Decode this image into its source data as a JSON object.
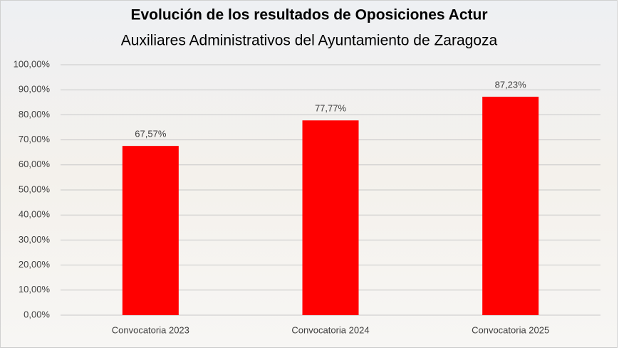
{
  "chart_data": {
    "type": "bar",
    "title": "Evolución de los resultados de Oposiciones Actur",
    "subtitle": "Auxiliares Administrativos del Ayuntamiento de Zaragoza",
    "categories": [
      "Convocatoria 2023",
      "Convocatoria 2024",
      "Convocatoria 2025"
    ],
    "values": [
      67.57,
      77.77,
      87.23
    ],
    "value_labels": [
      "67,57%",
      "77,77%",
      "87,23%"
    ],
    "color": "#ff0000",
    "ylim": [
      0,
      100
    ],
    "yticks": [
      {
        "value": 0,
        "label": "0,00%"
      },
      {
        "value": 10,
        "label": "10,00%"
      },
      {
        "value": 20,
        "label": "20,00%"
      },
      {
        "value": 30,
        "label": "30,00%"
      },
      {
        "value": 40,
        "label": "40,00%"
      },
      {
        "value": 50,
        "label": "50,00%"
      },
      {
        "value": 60,
        "label": "60,00%"
      },
      {
        "value": 70,
        "label": "70,00%"
      },
      {
        "value": 80,
        "label": "80,00%"
      },
      {
        "value": 90,
        "label": "90,00%"
      },
      {
        "value": 100,
        "label": "100,00%"
      }
    ],
    "grid": true
  }
}
